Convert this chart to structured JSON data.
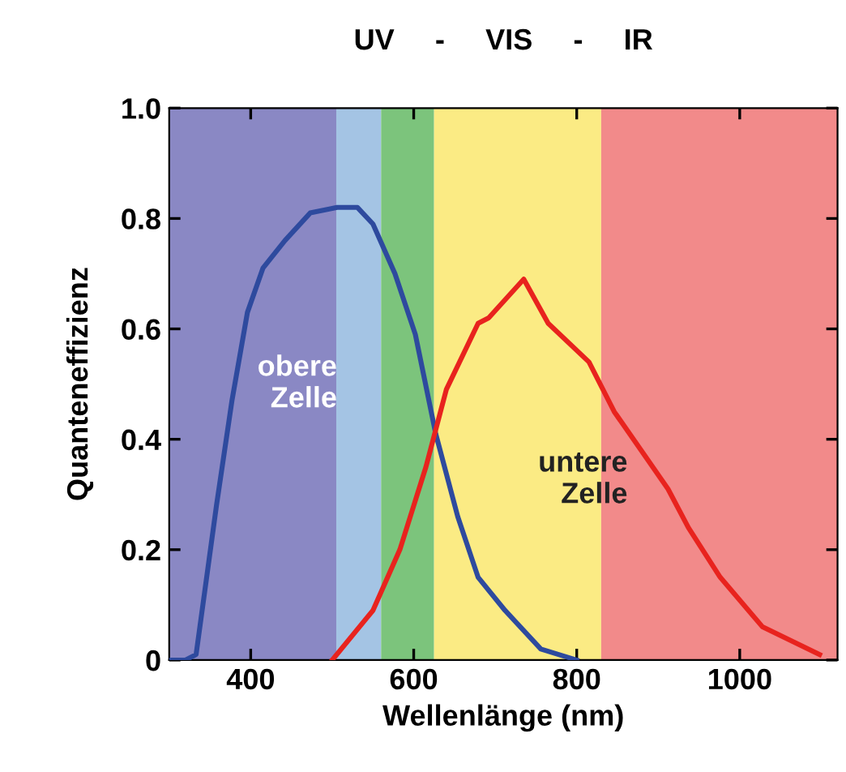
{
  "chart_data": {
    "type": "line",
    "title": "UV     -     VIS     -     IR",
    "xlabel": "Wellenlänge (nm)",
    "ylabel": "Quanteneffizienz",
    "xlim": [
      300,
      1120
    ],
    "xticks": [
      400,
      600,
      800,
      1000
    ],
    "ylim": [
      0,
      1.0
    ],
    "yticks": [
      {
        "value": 0,
        "label": "0"
      },
      0.2,
      0.4,
      0.6,
      0.8,
      {
        "value": 1.0,
        "label": "1.0"
      }
    ],
    "grid": false,
    "legend": false,
    "bands": [
      {
        "axis": "x",
        "from": 300,
        "to": 505,
        "color": "#8a88c4"
      },
      {
        "axis": "x",
        "from": 505,
        "to": 560,
        "color": "#a4c4e4"
      },
      {
        "axis": "x",
        "from": 560,
        "to": 625,
        "color": "#7cc47c"
      },
      {
        "axis": "x",
        "from": 625,
        "to": 830,
        "color": "#fbeb84"
      },
      {
        "axis": "x",
        "from": 830,
        "to": 1120,
        "color": "#f28a8a"
      }
    ],
    "series": [
      {
        "name": "obere\nZelle",
        "color": "#2e4a9e",
        "x": [
          300,
          320,
          333,
          358,
          377,
          396,
          415,
          442,
          473,
          506,
          531,
          550,
          577,
          602,
          627,
          654,
          679,
          712,
          756,
          800
        ],
        "values": [
          0,
          0,
          0.01,
          0.28,
          0.47,
          0.63,
          0.71,
          0.76,
          0.81,
          0.82,
          0.82,
          0.79,
          0.7,
          0.59,
          0.41,
          0.26,
          0.15,
          0.09,
          0.02,
          0
        ]
      },
      {
        "name": "untere\nZelle",
        "color": "#e8231e",
        "x": [
          500,
          550,
          583,
          615,
          640,
          679,
          692,
          735,
          765,
          815,
          846,
          879,
          912,
          937,
          976,
          1028,
          1098
        ],
        "values": [
          0,
          0.09,
          0.2,
          0.35,
          0.49,
          0.61,
          0.62,
          0.69,
          0.61,
          0.54,
          0.45,
          0.38,
          0.31,
          0.24,
          0.15,
          0.06,
          0.01
        ]
      }
    ]
  }
}
